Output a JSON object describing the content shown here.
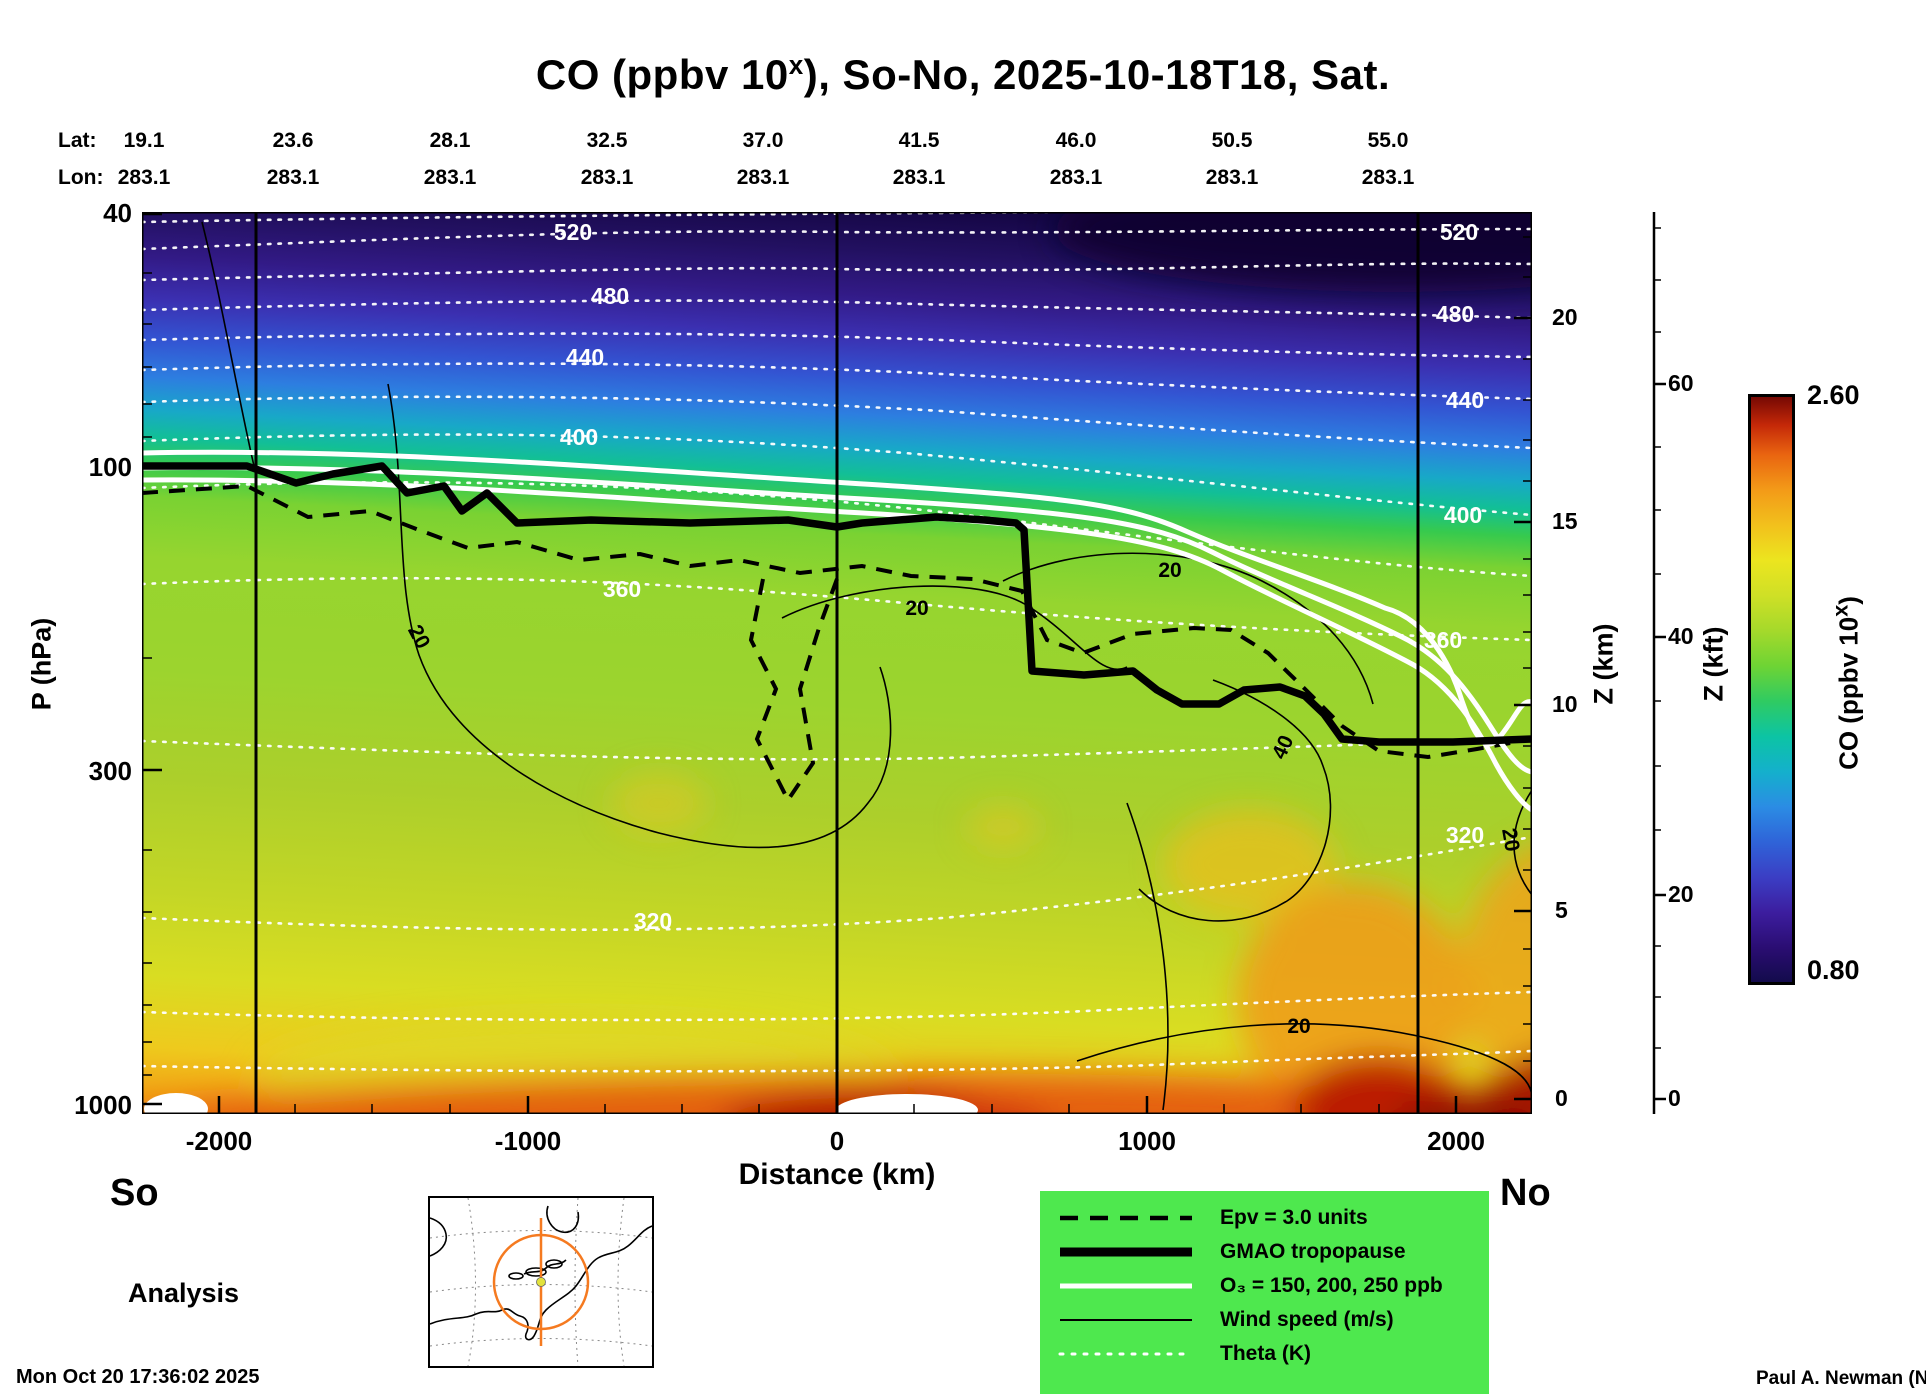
{
  "title": {
    "prefix": "CO (ppbv 10",
    "superscript": "x",
    "suffix": "), So-No, 2025-10-18T18, Sat."
  },
  "header": {
    "lat_label": "Lat:",
    "lon_label": "Lon:",
    "lat_values": [
      "19.1",
      "23.6",
      "28.1",
      "32.5",
      "37.0",
      "41.5",
      "46.0",
      "50.5",
      "55.0"
    ],
    "lon_values": [
      "283.1",
      "283.1",
      "283.1",
      "283.1",
      "283.1",
      "283.1",
      "283.1",
      "283.1",
      "283.1"
    ]
  },
  "axes": {
    "pressure": {
      "label": "P (hPa)",
      "ticks": [
        "40",
        "100",
        "300",
        "1000"
      ]
    },
    "distance": {
      "label": "Distance (km)",
      "ticks": [
        "-2000",
        "-1000",
        "0",
        "1000",
        "2000"
      ]
    },
    "z_km": {
      "label": "Z (km)",
      "ticks": [
        "20",
        "15",
        "10",
        "5",
        "0"
      ]
    },
    "z_kft": {
      "label": "Z (kft)",
      "ticks": [
        "60",
        "40",
        "20",
        "0"
      ]
    }
  },
  "colorbar": {
    "label_prefix": "CO (ppbv 10",
    "label_superscript": "x",
    "label_suffix": ")",
    "max": "2.60",
    "min": "0.80"
  },
  "endpoints": {
    "start": "So",
    "end": "No"
  },
  "annotations": {
    "analysis": "Analysis",
    "timestamp": "Mon Oct 20 17:36:02 2025",
    "credit": "Paul A. Newman (NASA"
  },
  "legend": {
    "items": [
      {
        "style": "dashed-black",
        "label": "Epv = 3.0 units"
      },
      {
        "style": "thick-black",
        "label": "GMAO tropopause"
      },
      {
        "style": "white-solid",
        "label": "O₃ = 150, 200, 250 ppb"
      },
      {
        "style": "thin-black",
        "label": "Wind speed (m/s)"
      },
      {
        "style": "white-dotted",
        "label": "Theta (K)"
      }
    ]
  },
  "chart_data": {
    "type": "heatmap",
    "title": "CO (ppbv 10^x), So-No, 2025-10-18T18, Sat.",
    "x": {
      "label": "Distance (km)",
      "range_km": [
        -2244,
        2244
      ],
      "ticks": [
        -2000,
        -1000,
        0,
        1000,
        2000
      ]
    },
    "y": {
      "label": "P (hPa)",
      "scale": "log",
      "range_hPa": [
        40,
        1000
      ],
      "ticks": [
        40,
        100,
        300,
        1000
      ]
    },
    "y2": {
      "label": "Z (km)",
      "ticks": [
        0,
        5,
        10,
        15,
        20
      ]
    },
    "y3": {
      "label": "Z (kft)",
      "ticks": [
        0,
        20,
        40,
        60
      ]
    },
    "top_axis": {
      "lat": [
        19.1,
        23.6,
        28.1,
        32.5,
        37.0,
        41.5,
        46.0,
        50.5,
        55.0
      ],
      "lon": [
        283.1,
        283.1,
        283.1,
        283.1,
        283.1,
        283.1,
        283.1,
        283.1,
        283.1
      ]
    },
    "section": {
      "from": "So",
      "to": "No",
      "mode": "Analysis",
      "valid": "2025-10-18T18",
      "day": "Sat."
    },
    "colorbar": {
      "label": "CO (ppbv 10^x)",
      "min": 0.8,
      "max": 2.6,
      "stops": [
        {
          "offset": 0.0,
          "color": "#120b4a"
        },
        {
          "offset": 0.06,
          "color": "#2a0d72"
        },
        {
          "offset": 0.12,
          "color": "#3c1d9e"
        },
        {
          "offset": 0.18,
          "color": "#3b3ec4"
        },
        {
          "offset": 0.24,
          "color": "#2f63d8"
        },
        {
          "offset": 0.3,
          "color": "#2b8ce4"
        },
        {
          "offset": 0.36,
          "color": "#14b0cc"
        },
        {
          "offset": 0.42,
          "color": "#0cc4a4"
        },
        {
          "offset": 0.48,
          "color": "#2fcb62"
        },
        {
          "offset": 0.54,
          "color": "#6ed434"
        },
        {
          "offset": 0.6,
          "color": "#a5d92b"
        },
        {
          "offset": 0.66,
          "color": "#cfe026"
        },
        {
          "offset": 0.72,
          "color": "#ece51f"
        },
        {
          "offset": 0.78,
          "color": "#f2c01c"
        },
        {
          "offset": 0.84,
          "color": "#f39a18"
        },
        {
          "offset": 0.9,
          "color": "#e96410"
        },
        {
          "offset": 0.95,
          "color": "#c42808"
        },
        {
          "offset": 1.0,
          "color": "#720703"
        }
      ]
    },
    "overlays": {
      "theta_K": {
        "style": "white dotted",
        "labeled_levels": [
          320,
          360,
          400,
          440,
          480,
          520
        ]
      },
      "wind_speed_ms": {
        "style": "thin black solid",
        "labeled_levels": [
          20,
          40
        ]
      },
      "o3_ppb": {
        "style": "white solid",
        "levels": [
          150,
          200,
          250
        ]
      },
      "epv": {
        "style": "black dashed",
        "level_units": 3.0
      },
      "tropopause": {
        "style": "thick black",
        "approx_points_km_hPa": [
          [
            -2244,
            100
          ],
          [
            -1905,
            100
          ],
          [
            -1469,
            100
          ],
          [
            -1033,
            123
          ],
          [
            -475,
            123
          ],
          [
            0,
            124
          ],
          [
            320,
            120
          ],
          [
            600,
            125
          ],
          [
            630,
            210
          ],
          [
            956,
            210
          ],
          [
            1233,
            237
          ],
          [
            1430,
            223
          ],
          [
            1572,
            245
          ],
          [
            1750,
            273
          ],
          [
            2244,
            270
          ]
        ]
      }
    },
    "legend_entries": [
      "Epv = 3.0 units",
      "GMAO tropopause",
      "O3 = 150, 200, 250 ppb",
      "Wind speed (m/s)",
      "Theta (K)"
    ],
    "colors": {
      "legend_bg": "#4ee84e",
      "map_circle": "#f57a20"
    }
  }
}
